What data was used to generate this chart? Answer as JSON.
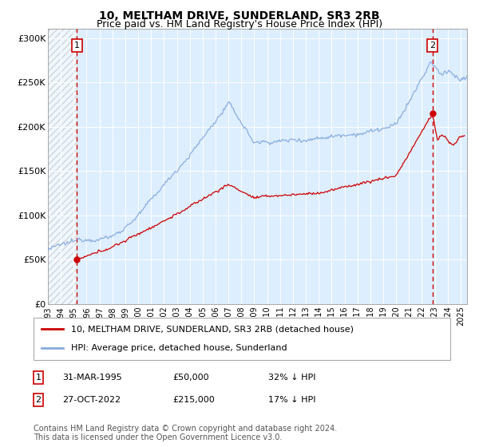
{
  "title": "10, MELTHAM DRIVE, SUNDERLAND, SR3 2RB",
  "subtitle": "Price paid vs. HM Land Registry's House Price Index (HPI)",
  "ylim": [
    0,
    310000
  ],
  "xlim_start": 1993.0,
  "xlim_end": 2025.5,
  "yticks": [
    0,
    50000,
    100000,
    150000,
    200000,
    250000,
    300000
  ],
  "ytick_labels": [
    "£0",
    "£50K",
    "£100K",
    "£150K",
    "£200K",
    "£250K",
    "£300K"
  ],
  "background_color": "#ffffff",
  "plot_bg_color": "#ddeeff",
  "hatch_region_end": 1995.25,
  "red_line_color": "#cc0000",
  "blue_line_color": "#88aadd",
  "purchase1_x": 1995.25,
  "purchase1_y": 50000,
  "purchase1_label": "1",
  "purchase1_date": "31-MAR-1995",
  "purchase1_price": "£50,000",
  "purchase1_hpi": "32% ↓ HPI",
  "purchase2_x": 2022.82,
  "purchase2_y": 215000,
  "purchase2_label": "2",
  "purchase2_date": "27-OCT-2022",
  "purchase2_price": "£215,000",
  "purchase2_hpi": "17% ↓ HPI",
  "legend_line1": "10, MELTHAM DRIVE, SUNDERLAND, SR3 2RB (detached house)",
  "legend_line2": "HPI: Average price, detached house, Sunderland",
  "footer": "Contains HM Land Registry data © Crown copyright and database right 2024.\nThis data is licensed under the Open Government Licence v3.0.",
  "title_fontsize": 10,
  "subtitle_fontsize": 9,
  "tick_fontsize": 8,
  "footer_fontsize": 7
}
